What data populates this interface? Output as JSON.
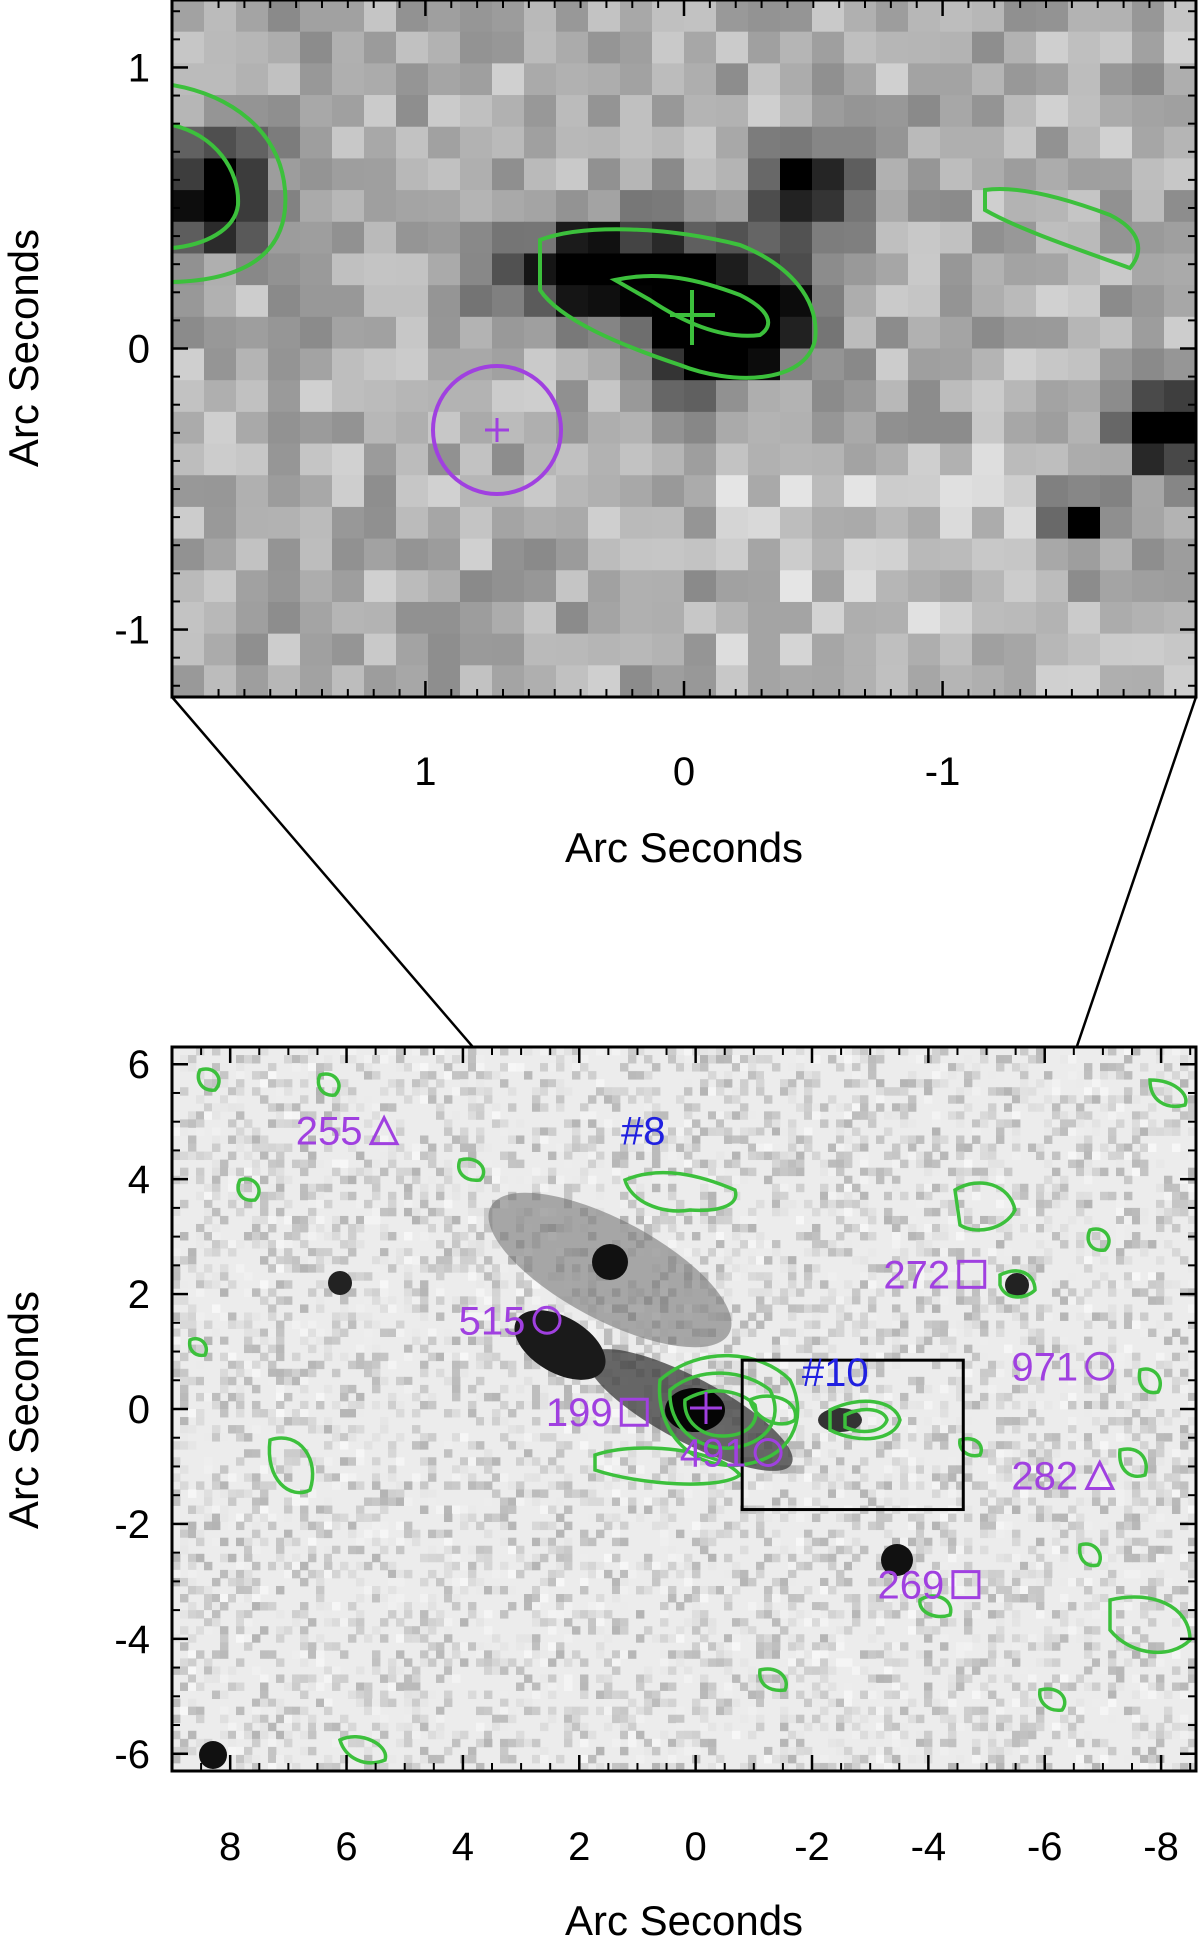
{
  "top_panel": {
    "xlabel": "Arc Seconds",
    "ylabel": "Arc Seconds",
    "xticks": [
      1,
      0,
      -1
    ],
    "yticks": [
      1,
      0,
      -1
    ],
    "xrange": [
      1.98,
      -1.98
    ],
    "yrange": [
      -1.24,
      1.24
    ],
    "markers": [
      {
        "kind": "cross",
        "x": -0.0,
        "y": 0.12,
        "color": "#3cc03c"
      },
      {
        "kind": "circle-cross",
        "x": 0.73,
        "y": -0.29,
        "color": "#a040e0"
      }
    ]
  },
  "bottom_panel": {
    "xlabel": "Arc Seconds",
    "ylabel": "Arc Seconds",
    "xticks": [
      8,
      6,
      4,
      2,
      0,
      -2,
      -4,
      -6,
      -8
    ],
    "yticks": [
      6,
      4,
      2,
      0,
      -2,
      -4,
      -6
    ],
    "xrange": [
      9.0,
      -8.6
    ],
    "yrange": [
      -6.3,
      6.3
    ],
    "zoom_box": {
      "x0": -0.8,
      "x1": -4.6,
      "y0": -1.75,
      "y1": 0.85
    },
    "labels": [
      {
        "text": "255",
        "symbol": "triangle",
        "x": 6.3,
        "y": 4.6,
        "color": "#a040e0"
      },
      {
        "text": "#8",
        "symbol": "",
        "x": 0.9,
        "y": 4.6,
        "color": "#2020e0"
      },
      {
        "text": "272",
        "symbol": "square",
        "x": -3.8,
        "y": 2.1,
        "color": "#a040e0"
      },
      {
        "text": "515",
        "symbol": "circle",
        "x": 3.5,
        "y": 1.3,
        "color": "#a040e0"
      },
      {
        "text": "#10",
        "symbol": "",
        "x": -2.4,
        "y": 0.4,
        "color": "#2020e0"
      },
      {
        "text": "971",
        "symbol": "circle",
        "x": -6.0,
        "y": 0.5,
        "color": "#a040e0"
      },
      {
        "text": "199",
        "symbol": "square",
        "x": 2.0,
        "y": -0.3,
        "color": "#a040e0"
      },
      {
        "text": "491",
        "symbol": "circle",
        "x": -0.3,
        "y": -1.0,
        "color": "#a040e0"
      },
      {
        "text": "282",
        "symbol": "triangle",
        "x": -6.0,
        "y": -1.4,
        "color": "#a040e0"
      },
      {
        "text": "269",
        "symbol": "square",
        "x": -3.7,
        "y": -3.3,
        "color": "#a040e0"
      }
    ]
  },
  "colors": {
    "contour": "#3cc03c",
    "magenta": "#a040e0",
    "blue": "#2020e0"
  }
}
